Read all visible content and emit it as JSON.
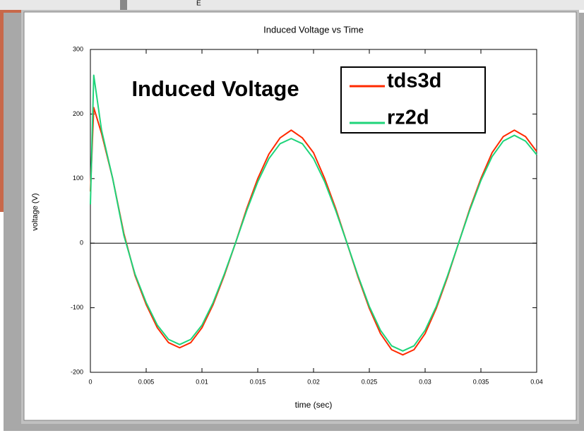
{
  "background_text": "E",
  "chart_data": {
    "type": "line",
    "title": "Induced Voltage vs Time",
    "xlabel": "time (sec)",
    "ylabel": "voltage (V)",
    "annotation": "Induced Voltage",
    "x": [
      0,
      0.0003,
      0.001,
      0.002,
      0.003,
      0.004,
      0.005,
      0.006,
      0.007,
      0.008,
      0.009,
      0.01,
      0.011,
      0.012,
      0.013,
      0.014,
      0.015,
      0.016,
      0.017,
      0.018,
      0.019,
      0.02,
      0.021,
      0.022,
      0.023,
      0.024,
      0.025,
      0.026,
      0.027,
      0.028,
      0.029,
      0.03,
      0.031,
      0.032,
      0.033,
      0.034,
      0.035,
      0.036,
      0.037,
      0.038,
      0.039,
      0.04
    ],
    "series": [
      {
        "name": "tds3d",
        "color": "#ff2a00",
        "values": [
          80,
          210,
          170,
          100,
          15,
          -50,
          -95,
          -131,
          -154,
          -162,
          -154,
          -131,
          -95,
          -50,
          0,
          53,
          100,
          138,
          163,
          175,
          163,
          140,
          100,
          53,
          0,
          -53,
          -101,
          -140,
          -165,
          -173,
          -165,
          -140,
          -101,
          -53,
          0,
          53,
          100,
          140,
          165,
          175,
          165,
          142
        ]
      },
      {
        "name": "rz2d",
        "color": "#1ed47a",
        "values": [
          60,
          260,
          175,
          100,
          12,
          -48,
          -92,
          -127,
          -149,
          -157,
          -149,
          -127,
          -92,
          -48,
          0,
          50,
          95,
          131,
          154,
          162,
          154,
          131,
          95,
          50,
          0,
          -51,
          -98,
          -135,
          -159,
          -167,
          -159,
          -135,
          -98,
          -51,
          0,
          51,
          97,
          134,
          158,
          167,
          158,
          137
        ]
      }
    ],
    "xlim": [
      0,
      0.04
    ],
    "xticks": [
      0,
      0.005,
      0.01,
      0.015,
      0.02,
      0.025,
      0.03,
      0.035,
      0.04
    ],
    "ylim": [
      -200,
      300
    ],
    "yticks": [
      -200,
      -100,
      0,
      100,
      200,
      300
    ],
    "hline": 0,
    "legend": "upper right"
  }
}
